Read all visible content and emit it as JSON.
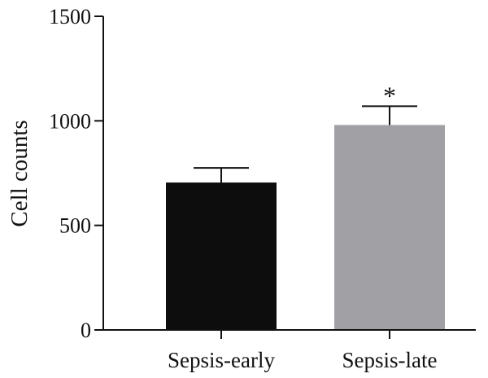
{
  "chart_data": {
    "type": "bar",
    "categories": [
      "Sepsis-early",
      "Sepsis-late"
    ],
    "values": [
      705,
      980
    ],
    "errors": [
      70,
      90
    ],
    "bar_colors": [
      "#0d0d0d",
      "#a0a0a5"
    ],
    "annotations": [
      "",
      "*"
    ],
    "title": "",
    "xlabel": "",
    "ylabel": "Cell counts",
    "ylim": [
      0,
      1500
    ],
    "yticks": [
      "0",
      "500",
      "1000",
      "1500"
    ],
    "yticks_values": [
      0,
      500,
      1000,
      1500
    ],
    "grid": false,
    "legend": "none"
  }
}
